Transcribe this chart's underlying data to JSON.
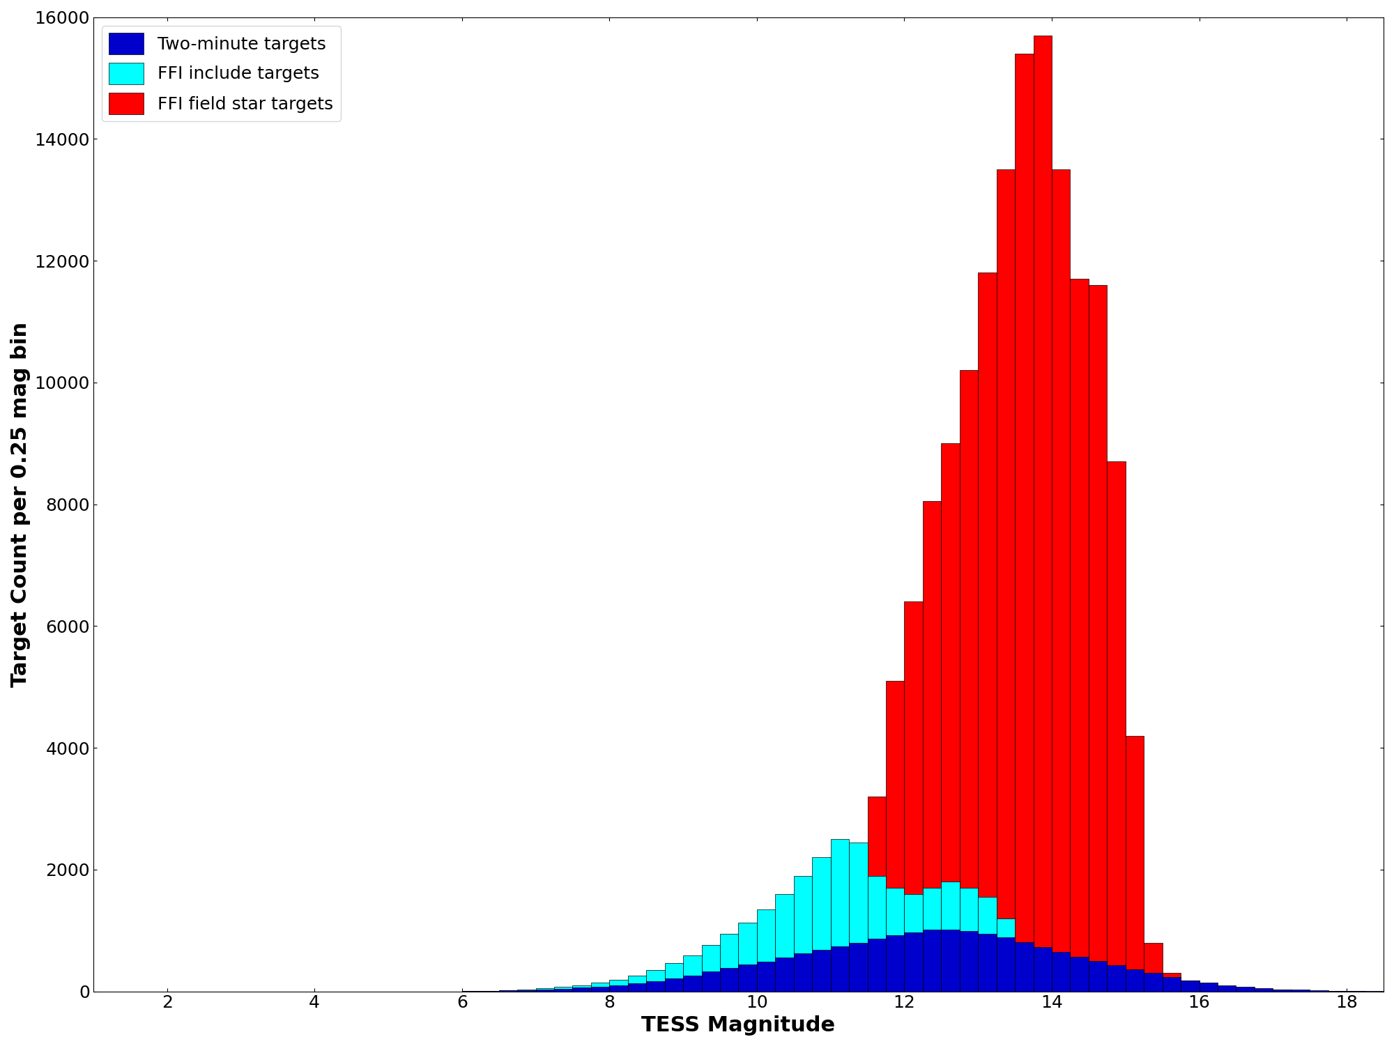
{
  "bin_width": 0.25,
  "xlabel": "TESS Magnitude",
  "ylabel": "Target Count per 0.25 mag bin",
  "xlim": [
    1.0,
    18.5
  ],
  "ylim": [
    0,
    16000
  ],
  "yticks": [
    0,
    2000,
    4000,
    6000,
    8000,
    10000,
    12000,
    14000,
    16000
  ],
  "xticks": [
    2,
    4,
    6,
    8,
    10,
    12,
    14,
    16,
    18
  ],
  "colors": {
    "two_min": "#0000CC",
    "ffi_include": "#00FFFF",
    "ffi_field": "#FF0000"
  },
  "legend_labels": [
    "Two-minute targets",
    "FFI include targets",
    "FFI field star targets"
  ],
  "bins_start": 1.0,
  "two_min": [
    0,
    0,
    0,
    0,
    0,
    0,
    0,
    0,
    0,
    0,
    0,
    0,
    0,
    0,
    0,
    0,
    0,
    0,
    0,
    0,
    5,
    8,
    15,
    20,
    30,
    40,
    60,
    80,
    100,
    130,
    170,
    210,
    260,
    330,
    390,
    440,
    490,
    560,
    620,
    680,
    740,
    800,
    860,
    920,
    970,
    1010,
    1010,
    990,
    950,
    890,
    810,
    730,
    650,
    570,
    500,
    430,
    360,
    300,
    240,
    180,
    140,
    100,
    70,
    50,
    35,
    25,
    18,
    12,
    8,
    5
  ],
  "ffi_include": [
    0,
    0,
    0,
    0,
    0,
    0,
    0,
    0,
    0,
    0,
    0,
    0,
    0,
    0,
    0,
    0,
    0,
    0,
    0,
    0,
    5,
    10,
    20,
    30,
    50,
    70,
    100,
    140,
    190,
    260,
    350,
    460,
    590,
    760,
    950,
    1130,
    1350,
    1600,
    1900,
    2200,
    2500,
    2450,
    1900,
    1700,
    1600,
    1700,
    1800,
    1700,
    1550,
    1200,
    800,
    500,
    350,
    280,
    230,
    190,
    160,
    120,
    90,
    70,
    50,
    35,
    25,
    18,
    12,
    8,
    5,
    3,
    2
  ],
  "ffi_field": [
    0,
    0,
    0,
    0,
    0,
    0,
    0,
    0,
    0,
    0,
    0,
    0,
    0,
    0,
    0,
    0,
    0,
    0,
    0,
    0,
    0,
    0,
    0,
    0,
    0,
    0,
    0,
    0,
    0,
    0,
    0,
    0,
    0,
    0,
    0,
    0,
    0,
    0,
    0,
    0,
    800,
    1650,
    3200,
    5100,
    6400,
    8050,
    9000,
    10200,
    11800,
    13500,
    15400,
    15700,
    13500,
    11700,
    11600,
    8700,
    4200,
    800,
    300,
    180,
    100,
    70,
    50,
    35,
    25,
    18,
    12,
    8,
    5
  ]
}
